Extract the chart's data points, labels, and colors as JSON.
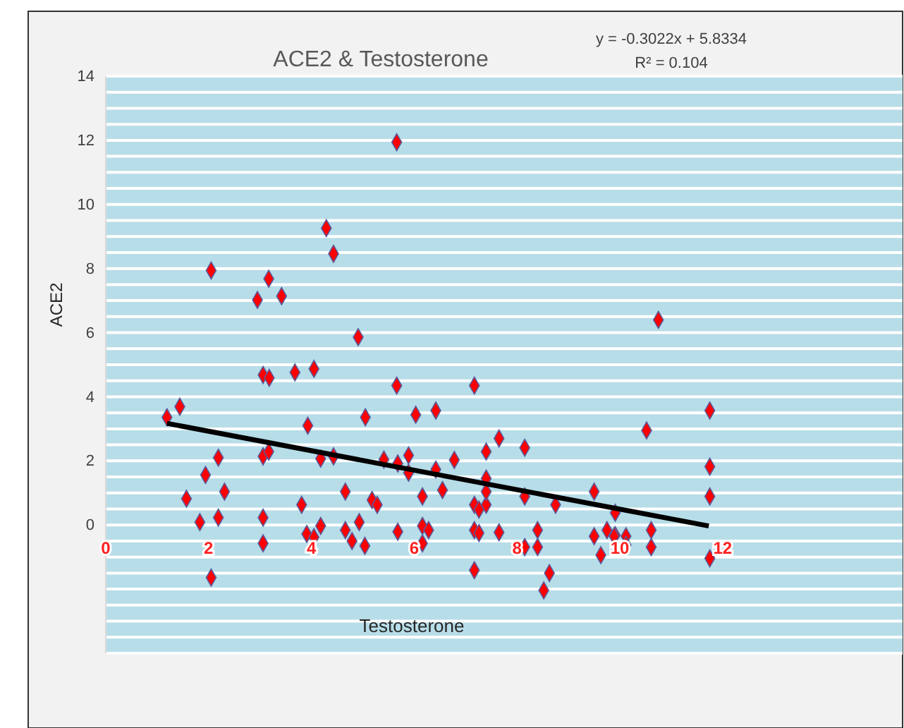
{
  "chart_data": {
    "type": "scatter",
    "title": "ACE2 & Testosterone",
    "xlabel": "Testosterone",
    "ylabel": "ACE2",
    "annotations": [
      "y = -0.3022x + 5.8334",
      "R² = 0.104"
    ],
    "xlim": [
      0,
      15.5
    ],
    "xticks": [
      0,
      2,
      4,
      6,
      8,
      10,
      12
    ],
    "ylim": [
      -4,
      14
    ],
    "yticks": [
      {
        "value": -4,
        "label": null
      },
      {
        "value": -3.5,
        "label": null
      },
      {
        "value": -3,
        "label": null
      },
      {
        "value": -2.5,
        "label": null
      },
      {
        "value": -2,
        "label": null
      },
      {
        "value": -1.5,
        "label": null
      },
      {
        "value": -1,
        "label": null
      },
      {
        "value": -0.5,
        "label": null
      },
      0,
      {
        "value": 0.5,
        "label": null
      },
      {
        "value": 1,
        "label": null
      },
      {
        "value": 1.5,
        "label": null
      },
      2,
      {
        "value": 2.5,
        "label": null
      },
      {
        "value": 3,
        "label": null
      },
      {
        "value": 3.5,
        "label": null
      },
      4,
      {
        "value": 4.5,
        "label": null
      },
      {
        "value": 5,
        "label": null
      },
      {
        "value": 5.5,
        "label": null
      },
      6,
      {
        "value": 6.5,
        "label": null
      },
      {
        "value": 7,
        "label": null
      },
      {
        "value": 7.5,
        "label": null
      },
      8,
      {
        "value": 8.5,
        "label": null
      },
      {
        "value": 9,
        "label": null
      },
      {
        "value": 9.5,
        "label": null
      },
      10,
      {
        "value": 10.5,
        "label": null
      },
      {
        "value": 11,
        "label": null
      },
      {
        "value": 11.5,
        "label": null
      },
      12,
      {
        "value": 12.5,
        "label": null
      },
      {
        "value": 13,
        "label": null
      },
      {
        "value": 13.5,
        "label": null
      },
      14
    ],
    "grid": "y",
    "marker": "diamond",
    "series": [
      {
        "type": "scatter",
        "color": "#ff0000",
        "x": [
          4.29,
          4.43,
          2.05,
          3.17,
          2.95,
          3.42,
          4.91,
          5.66,
          10.75,
          1.19,
          1.44,
          3.06,
          3.18,
          3.68,
          4.05,
          3.93,
          5.05,
          2.19,
          3.06,
          3.17,
          4.18,
          4.43,
          1.94,
          2.31,
          1.57,
          4.66,
          3.81,
          1.83,
          2.19,
          3.06,
          3.06,
          3.91,
          4.05,
          4.18,
          4.66,
          4.79,
          4.93,
          5.04,
          2.05,
          5.66,
          7.17,
          6.03,
          6.42,
          7.65,
          7.4,
          8.15,
          5.41,
          5.68,
          5.89,
          5.89,
          6.42,
          6.78,
          7.4,
          5.18,
          5.28,
          6.16,
          6.55,
          7.17,
          7.26,
          7.4,
          7.4,
          8.15,
          8.75,
          9.5,
          5.68,
          6.16,
          6.28,
          6.16,
          7.17,
          7.26,
          7.65,
          8.4,
          8.15,
          8.4,
          7.17,
          8.63,
          8.52,
          9.5,
          9.63,
          9.75,
          9.91,
          9.91,
          10.52,
          11.75,
          11.75,
          11.75,
          11.75,
          9.89,
          10.12,
          10.12,
          10.61,
          10.61
        ],
        "values": [
          9.26,
          8.46,
          7.94,
          7.68,
          7.02,
          7.14,
          5.86,
          11.94,
          6.4,
          3.36,
          3.69,
          4.68,
          4.59,
          4.76,
          4.87,
          3.1,
          3.36,
          2.1,
          2.14,
          2.29,
          2.07,
          2.14,
          1.56,
          1.04,
          0.82,
          1.04,
          0.63,
          0.09,
          0.23,
          0.23,
          -0.57,
          -0.28,
          -0.38,
          -0.03,
          -0.16,
          -0.5,
          0.09,
          -0.65,
          -1.64,
          4.35,
          4.35,
          3.44,
          3.57,
          2.7,
          2.29,
          2.41,
          2.04,
          1.92,
          2.17,
          1.63,
          1.73,
          2.03,
          1.45,
          0.78,
          0.63,
          0.89,
          1.09,
          0.63,
          0.48,
          0.63,
          1.04,
          0.89,
          0.63,
          1.04,
          -0.21,
          -0.03,
          -0.16,
          -0.57,
          -0.16,
          -0.25,
          -0.23,
          -0.16,
          -0.69,
          -0.69,
          -1.41,
          -1.5,
          -2.04,
          -0.35,
          -0.94,
          -0.16,
          -0.32,
          0.38,
          2.95,
          3.57,
          1.82,
          0.89,
          -1.04,
          -0.35,
          -0.35,
          -0.62,
          -0.16,
          -0.69
        ]
      },
      {
        "type": "line",
        "color": "#000000",
        "marker": "none",
        "x": [
          1.19,
          11.73
        ],
        "values": [
          3.17,
          -0.03
        ]
      }
    ]
  }
}
